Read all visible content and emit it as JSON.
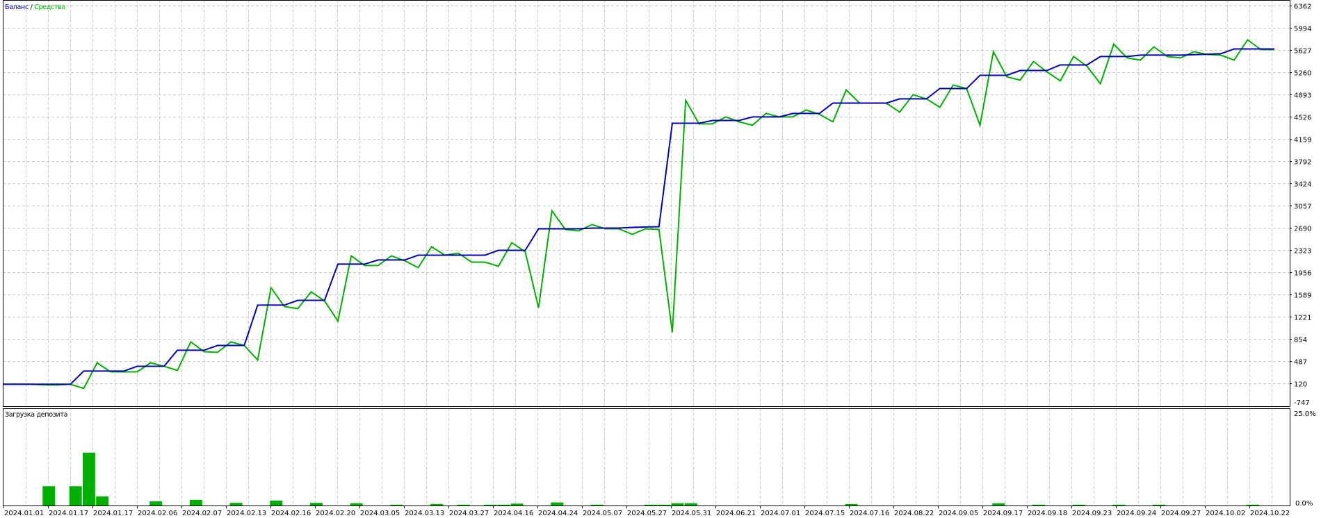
{
  "legend": {
    "balance_label": "Баланс",
    "separator": " / ",
    "equity_label": "Средства"
  },
  "colors": {
    "balance": "#0000b4",
    "equity": "#00b000",
    "deposit_load": "#00b000",
    "grid": "#c8c8c8",
    "axis": "#000000"
  },
  "chart_data": [
    {
      "type": "line",
      "title": "",
      "xlabel": "",
      "ylabel": "",
      "ylim": [
        -747,
        6362
      ],
      "grid": true,
      "legend_placement": "top-left",
      "y_ticks": [
        "6362",
        "5994",
        "5627",
        "5260",
        "4893",
        "4526",
        "4159",
        "3792",
        "3424",
        "3057",
        "2690",
        "2323",
        "1956",
        "1589",
        "1221",
        "854",
        "487",
        "120"
      ],
      "y_min_label": "-747",
      "series": [
        {
          "name": "Баланс",
          "color": "#0000b4",
          "values": [
            109,
            109,
            109,
            109,
            109,
            109,
            327,
            327,
            327,
            327,
            407,
            407,
            407,
            671,
            671,
            671,
            751,
            751,
            751,
            1417,
            1417,
            1417,
            1497,
            1497,
            1497,
            2094,
            2094,
            2094,
            2163,
            2163,
            2163,
            2243,
            2243,
            2243,
            2243,
            2243,
            2243,
            2323,
            2323,
            2323,
            2679,
            2679,
            2679,
            2679,
            2690,
            2690,
            2690,
            2702,
            2708,
            2713,
            4423,
            4423,
            4423,
            4469,
            4469,
            4469,
            4527,
            4527,
            4527,
            4584,
            4584,
            4584,
            4756,
            4756,
            4756,
            4756,
            4756,
            4825,
            4825,
            4825,
            4997,
            4997,
            4997,
            5215,
            5215,
            5215,
            5295,
            5295,
            5295,
            5387,
            5387,
            5387,
            5525,
            5525,
            5525,
            5548,
            5548,
            5548,
            5548,
            5555,
            5563,
            5571,
            5651,
            5651,
            5651,
            5651
          ]
        },
        {
          "name": "Средства",
          "color": "#00b000",
          "values": [
            109,
            109,
            109,
            100,
            97,
            109,
            40,
            464,
            315,
            315,
            315,
            464,
            407,
            338,
            809,
            648,
            636,
            809,
            751,
            510,
            1704,
            1394,
            1359,
            1635,
            1486,
            1153,
            2231,
            2071,
            2071,
            2231,
            2151,
            2036,
            2381,
            2243,
            2277,
            2128,
            2128,
            2059,
            2449,
            2300,
            1371,
            2977,
            2667,
            2644,
            2748,
            2679,
            2679,
            2587,
            2679,
            2667,
            969,
            4802,
            4412,
            4412,
            4527,
            4446,
            4389,
            4584,
            4527,
            4527,
            4641,
            4572,
            4446,
            4974,
            4756,
            4756,
            4756,
            4607,
            4894,
            4825,
            4687,
            5054,
            4997,
            4389,
            5605,
            5192,
            5134,
            5444,
            5272,
            5123,
            5525,
            5364,
            5077,
            5731,
            5502,
            5467,
            5685,
            5525,
            5502,
            5605,
            5559,
            5548,
            5467,
            5800,
            5640,
            5640
          ]
        }
      ]
    },
    {
      "type": "bar",
      "title": "Загрузка депозита",
      "xlabel": "",
      "ylabel": "",
      "ylim": [
        0,
        25
      ],
      "y_ticks": [
        "25.0%",
        "0.0%"
      ],
      "grid": true,
      "bars": [
        {
          "deal": 3,
          "value": 5.1
        },
        {
          "deal": 5,
          "value": 5.1
        },
        {
          "deal": 6,
          "value": 14.0
        },
        {
          "deal": 7,
          "value": 2.4
        },
        {
          "deal": 11,
          "value": 1.1
        },
        {
          "deal": 14,
          "value": 1.5
        },
        {
          "deal": 17,
          "value": 0.7
        },
        {
          "deal": 20,
          "value": 1.3
        },
        {
          "deal": 23,
          "value": 0.7
        },
        {
          "deal": 26,
          "value": 0.6
        },
        {
          "deal": 29,
          "value": 0.2
        },
        {
          "deal": 32,
          "value": 0.4
        },
        {
          "deal": 34,
          "value": 0.2
        },
        {
          "deal": 36,
          "value": 0.2
        },
        {
          "deal": 37,
          "value": 0.2
        },
        {
          "deal": 38,
          "value": 0.5
        },
        {
          "deal": 41,
          "value": 0.8
        },
        {
          "deal": 44,
          "value": 0.2
        },
        {
          "deal": 48,
          "value": 0.2
        },
        {
          "deal": 49,
          "value": 0.2
        },
        {
          "deal": 50,
          "value": 0.6
        },
        {
          "deal": 51,
          "value": 0.6
        },
        {
          "deal": 63,
          "value": 0.4
        },
        {
          "deal": 74,
          "value": 0.6
        },
        {
          "deal": 77,
          "value": 0.2
        },
        {
          "deal": 80,
          "value": 0.2
        },
        {
          "deal": 83,
          "value": 0.2
        },
        {
          "deal": 86,
          "value": 0.2
        },
        {
          "deal": 93,
          "value": 0.2
        }
      ]
    }
  ],
  "x_tick_labels": [
    "2024.01.01",
    "2024.01.17",
    "2024.01.17",
    "2024.02.06",
    "2024.02.07",
    "2024.02.13",
    "2024.02.16",
    "2024.02.20",
    "2024.03.05",
    "2024.03.13",
    "2024.03.27",
    "2024.04.16",
    "2024.04.24",
    "2024.05.07",
    "2024.05.27",
    "2024.05.31",
    "2024.06.21",
    "2024.07.01",
    "2024.07.15",
    "2024.07.16",
    "2024.08.22",
    "2024.09.05",
    "2024.09.17",
    "2024.09.18",
    "2024.09.23",
    "2024.09.24",
    "2024.09.27",
    "2024.10.02",
    "2024.10.22"
  ]
}
